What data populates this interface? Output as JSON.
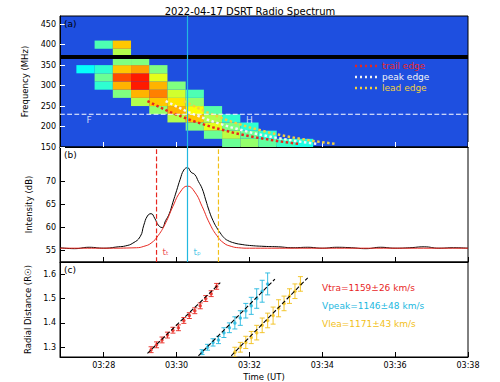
{
  "chart_data": {
    "type": "multi_panel",
    "title": "2022-04-17 DSRT Radio Spectrum",
    "x_label": "Time (UT)",
    "xlim": [
      26.8,
      38
    ],
    "xticks": [
      {
        "value": 28,
        "label": "03:28"
      },
      {
        "value": 30,
        "label": "03:30"
      },
      {
        "value": 32,
        "label": "03:32"
      },
      {
        "value": 34,
        "label": "03:34"
      },
      {
        "value": 36,
        "label": "03:36"
      },
      {
        "value": 38,
        "label": "03:38"
      }
    ],
    "panels": [
      {
        "type": "spectrogram",
        "label": "(a)",
        "y_label": "Frequency (MHz)",
        "ylim": [
          150,
          470
        ],
        "yticks": [
          150,
          200,
          250,
          300,
          350,
          400,
          450
        ],
        "spectrum": {
          "dt": 0.5,
          "df": 20,
          "vmin": 0,
          "vmax": 1,
          "cells": [
            [
              27.5,
              340,
              0.38
            ],
            [
              28.0,
              300,
              0.42
            ],
            [
              28.0,
              320,
              0.48
            ],
            [
              28.0,
              340,
              0.42
            ],
            [
              28.0,
              400,
              0.45
            ],
            [
              28.5,
              280,
              0.5
            ],
            [
              28.5,
              300,
              0.7
            ],
            [
              28.5,
              320,
              0.8
            ],
            [
              28.5,
              340,
              0.68
            ],
            [
              28.5,
              360,
              0.5
            ],
            [
              28.5,
              380,
              0.55
            ],
            [
              28.5,
              400,
              0.68
            ],
            [
              29.0,
              260,
              0.55
            ],
            [
              29.0,
              280,
              0.7
            ],
            [
              29.0,
              300,
              0.85
            ],
            [
              29.0,
              320,
              0.85
            ],
            [
              29.0,
              340,
              0.72
            ],
            [
              29.0,
              360,
              0.5
            ],
            [
              29.5,
              240,
              0.52
            ],
            [
              29.5,
              260,
              0.68
            ],
            [
              29.5,
              280,
              0.75
            ],
            [
              29.5,
              300,
              0.7
            ],
            [
              29.5,
              320,
              0.6
            ],
            [
              29.5,
              340,
              0.5
            ],
            [
              30.0,
              220,
              0.55
            ],
            [
              30.0,
              240,
              0.7
            ],
            [
              30.0,
              260,
              0.65
            ],
            [
              30.0,
              280,
              0.58
            ],
            [
              30.0,
              300,
              0.5
            ],
            [
              30.5,
              200,
              0.5
            ],
            [
              30.5,
              220,
              0.68
            ],
            [
              30.5,
              240,
              0.62
            ],
            [
              30.5,
              260,
              0.52
            ],
            [
              30.5,
              280,
              0.45
            ],
            [
              31.0,
              180,
              0.48
            ],
            [
              31.0,
              200,
              0.6
            ],
            [
              31.0,
              220,
              0.55
            ],
            [
              31.0,
              240,
              0.46
            ],
            [
              31.5,
              160,
              0.48
            ],
            [
              31.5,
              180,
              0.56
            ],
            [
              31.5,
              200,
              0.5
            ],
            [
              31.5,
              220,
              0.42
            ],
            [
              32.0,
              160,
              0.52
            ],
            [
              32.0,
              180,
              0.48
            ],
            [
              32.0,
              200,
              0.42
            ],
            [
              32.5,
              160,
              0.47
            ],
            [
              32.5,
              180,
              0.42
            ],
            [
              33.0,
              160,
              0.43
            ],
            [
              33.5,
              160,
              0.4
            ]
          ]
        },
        "rfi_frequency": 370,
        "slice_frequency": 230,
        "series": [
          {
            "name": "trail edge",
            "color": "#e8271f",
            "line_style": "dotted",
            "x": [
              29.2,
              29.8,
              30.4,
              31.0,
              31.6,
              32.2,
              32.8,
              33.4
            ],
            "values": [
              262,
              236,
              215,
              198,
              184,
              173,
              164,
              157
            ]
          },
          {
            "name": "peak edge",
            "color": "#f4f4f4",
            "line_style": "dotted",
            "x": [
              29.7,
              30.3,
              30.9,
              31.5,
              32.1,
              32.7,
              33.3,
              33.9
            ],
            "values": [
              262,
              236,
              215,
              198,
              184,
              173,
              164,
              157
            ]
          },
          {
            "name": "lead edge",
            "color": "#f2d040",
            "line_style": "dotted",
            "x": [
              30.2,
              30.8,
              31.4,
              32.0,
              32.6,
              33.2,
              33.8,
              34.4
            ],
            "values": [
              262,
              236,
              215,
              198,
              184,
              173,
              164,
              157
            ]
          }
        ],
        "annotations": [
          {
            "text": "F",
            "x": 27.6,
            "y": 215
          },
          {
            "text": "H",
            "x": 32.0,
            "y": 215
          }
        ],
        "markers": [
          {
            "x": 30.3,
            "color": "#22b8e0",
            "line_style": "solid"
          }
        ],
        "legend": "upper right"
      },
      {
        "type": "line",
        "label": "(b)",
        "y_label": "Intensity (dB)",
        "ylim": [
          52.5,
          77.5
        ],
        "yticks": [
          55,
          60,
          65,
          70
        ],
        "series": [
          {
            "color": "#000000",
            "line_style": "solid",
            "x": [
              26.8,
              27.2,
              27.6,
              28.0,
              28.4,
              28.6,
              28.8,
              29.0,
              29.1,
              29.2,
              29.3,
              29.4,
              29.5,
              29.6,
              29.7,
              29.8,
              29.9,
              30.0,
              30.1,
              30.2,
              30.3,
              30.4,
              30.5,
              30.6,
              30.7,
              30.8,
              30.9,
              31.0,
              31.1,
              31.2,
              31.3,
              31.4,
              31.6,
              31.8,
              32.0,
              32.4,
              32.8,
              33.2,
              33.6,
              34.0,
              34.4,
              34.8,
              35.2,
              35.6,
              36.0,
              36.4,
              36.8,
              37.2,
              37.6,
              38.0
            ],
            "values": [
              55.6,
              55.4,
              55.7,
              55.5,
              55.8,
              56.0,
              56.6,
              58.0,
              60.5,
              62.5,
              63.0,
              62.0,
              60.5,
              60.0,
              61.5,
              63.0,
              65.5,
              68.0,
              70.5,
              72.5,
              73.0,
              72.0,
              71.5,
              70.0,
              68.5,
              66.0,
              63.5,
              61.5,
              60.0,
              58.8,
              57.8,
              57.2,
              56.6,
              56.3,
              56.1,
              55.9,
              55.8,
              55.6,
              55.7,
              55.5,
              55.7,
              55.6,
              55.4,
              55.7,
              55.5,
              55.6,
              55.8,
              55.5,
              55.6,
              55.5
            ]
          },
          {
            "color": "#e8271f",
            "line_style": "solid",
            "x": [
              26.8,
              28.0,
              28.9,
              29.1,
              29.3,
              29.5,
              29.7,
              29.9,
              30.1,
              30.3,
              30.5,
              30.7,
              30.9,
              31.1,
              31.3,
              31.5,
              31.7,
              32.0,
              33.0,
              38.0
            ],
            "values": [
              55.5,
              55.5,
              55.6,
              55.9,
              56.6,
              58.3,
              61.0,
              64.6,
              67.7,
              69.0,
              67.7,
              64.6,
              61.0,
              58.3,
              56.6,
              55.9,
              55.6,
              55.5,
              55.5,
              55.5
            ]
          }
        ],
        "markers": [
          {
            "x": 29.45,
            "color": "#e8271f",
            "line_style": "dashed",
            "text": "tₜ"
          },
          {
            "x": 30.3,
            "color": "#22b8e0",
            "line_style": "solid",
            "text": "tₚ"
          },
          {
            "x": 31.15,
            "color": "#f2c018",
            "line_style": "dashed"
          }
        ]
      },
      {
        "type": "scatter",
        "label": "(c)",
        "y_label": "Radial Distance (R☉)",
        "ylim": [
          1.26,
          1.65
        ],
        "yticks": [
          1.3,
          1.4,
          1.5,
          1.6
        ],
        "series": [
          {
            "name": "Vtra=1159±26 km/s",
            "color": "#e8271f",
            "marker": "circle",
            "x": [
              29.3,
              29.45,
              29.6,
              29.75,
              29.9,
              30.05,
              30.2,
              30.35,
              30.5,
              30.65,
              30.8,
              30.95,
              31.1
            ],
            "values": [
              1.29,
              1.31,
              1.33,
              1.35,
              1.37,
              1.38,
              1.41,
              1.43,
              1.45,
              1.47,
              1.5,
              1.52,
              1.55
            ],
            "errors": [
              0.012,
              0.012,
              0.012,
              0.012,
              0.012,
              0.012,
              0.012,
              0.012,
              0.012,
              0.012,
              0.012,
              0.012,
              0.012
            ],
            "fit": {
              "color": "#000000",
              "line_style": "dashed",
              "x": [
                29.2,
                31.2
              ],
              "values": [
                1.275,
                1.565
              ]
            }
          },
          {
            "name": "Vpeak=1146±48 km/s",
            "color": "#22b8e0",
            "marker": "circle",
            "x": [
              30.7,
              30.85,
              31.0,
              31.15,
              31.3,
              31.45,
              31.6,
              31.75,
              31.9,
              32.05,
              32.2,
              32.35,
              32.5
            ],
            "values": [
              1.28,
              1.3,
              1.32,
              1.33,
              1.36,
              1.38,
              1.4,
              1.42,
              1.45,
              1.47,
              1.5,
              1.53,
              1.56
            ],
            "errors": [
              0.01,
              0.012,
              0.015,
              0.015,
              0.02,
              0.02,
              0.025,
              0.03,
              0.03,
              0.035,
              0.04,
              0.045,
              0.045
            ],
            "fit": {
              "color": "#000000",
              "line_style": "dashed",
              "x": [
                30.6,
                32.7
              ],
              "values": [
                1.265,
                1.58
              ]
            }
          },
          {
            "name": "Vlea=1171±43 km/s",
            "color": "#f2c018",
            "marker": "circle",
            "x": [
              31.6,
              31.75,
              31.9,
              32.05,
              32.2,
              32.35,
              32.5,
              32.65,
              32.8,
              32.95,
              33.1,
              33.25,
              33.4
            ],
            "values": [
              1.28,
              1.3,
              1.32,
              1.34,
              1.36,
              1.39,
              1.41,
              1.43,
              1.46,
              1.48,
              1.51,
              1.53,
              1.56
            ],
            "errors": [
              0.02,
              0.02,
              0.025,
              0.025,
              0.03,
              0.03,
              0.03,
              0.035,
              0.035,
              0.03,
              0.03,
              0.03,
              0.03
            ],
            "fit": {
              "color": "#000000",
              "line_style": "dashed",
              "x": [
                31.5,
                33.6
              ],
              "values": [
                1.265,
                1.585
              ]
            }
          }
        ],
        "legend": "right"
      }
    ]
  }
}
